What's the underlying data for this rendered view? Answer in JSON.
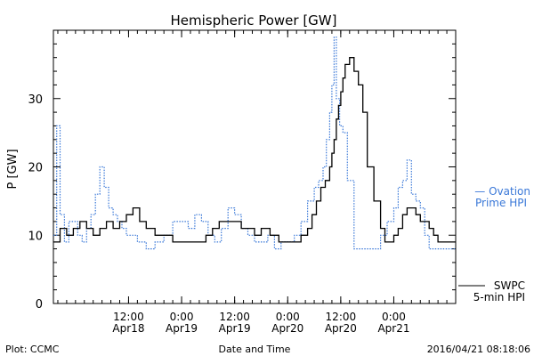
{
  "chart_data": {
    "type": "line",
    "title": "Hemispheric Power [GW]",
    "xlabel": "Date and Time",
    "ylabel": "P [GW]",
    "ylim": [
      0,
      40
    ],
    "xlim": [
      "2016-04-17 19:00",
      "2016-04-21 14:00"
    ],
    "yticks": [
      0,
      10,
      20,
      30
    ],
    "xticks": [
      {
        "time": "2016-04-18 12:00",
        "line1": "12:00",
        "line2": "Apr18"
      },
      {
        "time": "2016-04-19 00:00",
        "line1": "0:00",
        "line2": "Apr19"
      },
      {
        "time": "2016-04-19 12:00",
        "line1": "12:00",
        "line2": "Apr19"
      },
      {
        "time": "2016-04-20 00:00",
        "line1": "0:00",
        "line2": "Apr20"
      },
      {
        "time": "2016-04-20 12:00",
        "line1": "12:00",
        "line2": "Apr20"
      },
      {
        "time": "2016-04-21 00:00",
        "line1": "0:00",
        "line2": "Apr21"
      }
    ],
    "series": [
      {
        "name": "SWPC 5-min HPI",
        "color": "#000000",
        "style": "solid",
        "x": [
          "2016-04-17 19:00",
          "2016-04-17 20:30",
          "2016-04-17 22:00",
          "2016-04-17 23:30",
          "2016-04-18 01:00",
          "2016-04-18 02:30",
          "2016-04-18 04:00",
          "2016-04-18 05:30",
          "2016-04-18 07:00",
          "2016-04-18 08:30",
          "2016-04-18 10:00",
          "2016-04-18 11:30",
          "2016-04-18 13:00",
          "2016-04-18 14:30",
          "2016-04-18 16:00",
          "2016-04-18 18:00",
          "2016-04-18 20:00",
          "2016-04-18 22:00",
          "2016-04-19 00:00",
          "2016-04-19 02:00",
          "2016-04-19 04:00",
          "2016-04-19 05:30",
          "2016-04-19 07:00",
          "2016-04-19 08:30",
          "2016-04-19 10:00",
          "2016-04-19 12:00",
          "2016-04-19 13:30",
          "2016-04-19 15:00",
          "2016-04-19 16:30",
          "2016-04-19 18:00",
          "2016-04-19 20:00",
          "2016-04-19 22:00",
          "2016-04-20 00:00",
          "2016-04-20 01:30",
          "2016-04-20 03:00",
          "2016-04-20 04:30",
          "2016-04-20 05:30",
          "2016-04-20 06:30",
          "2016-04-20 07:30",
          "2016-04-20 08:30",
          "2016-04-20 09:30",
          "2016-04-20 10:00",
          "2016-04-20 10:30",
          "2016-04-20 11:00",
          "2016-04-20 11:30",
          "2016-04-20 12:00",
          "2016-04-20 12:30",
          "2016-04-20 13:00",
          "2016-04-20 14:00",
          "2016-04-20 15:00",
          "2016-04-20 16:00",
          "2016-04-20 17:00",
          "2016-04-20 18:00",
          "2016-04-20 19:30",
          "2016-04-20 21:00",
          "2016-04-20 22:00",
          "2016-04-20 23:00",
          "2016-04-21 00:00",
          "2016-04-21 01:00",
          "2016-04-21 02:00",
          "2016-04-21 03:00",
          "2016-04-21 04:00",
          "2016-04-21 05:00",
          "2016-04-21 06:00",
          "2016-04-21 07:00",
          "2016-04-21 08:00",
          "2016-04-21 09:00",
          "2016-04-21 10:00",
          "2016-04-21 11:00",
          "2016-04-21 12:00",
          "2016-04-21 13:00"
        ],
        "y": [
          9,
          11,
          10,
          11,
          12,
          11,
          10,
          11,
          12,
          11,
          12,
          13,
          14,
          12,
          11,
          10,
          10,
          9,
          9,
          9,
          9,
          10,
          11,
          12,
          12,
          12,
          11,
          11,
          10,
          11,
          10,
          9,
          9,
          9,
          10,
          11,
          13,
          15,
          17,
          18,
          20,
          22,
          24,
          27,
          29,
          31,
          33,
          35,
          36,
          34,
          32,
          28,
          20,
          15,
          11,
          9,
          9,
          10,
          11,
          13,
          14,
          14,
          13,
          12,
          12,
          11,
          10,
          9,
          9,
          9,
          9
        ]
      },
      {
        "name": "Ovation Prime HPI",
        "color": "#3a78d8",
        "style": "dotted",
        "x": [
          "2016-04-17 19:00",
          "2016-04-17 19:45",
          "2016-04-17 20:30",
          "2016-04-17 21:30",
          "2016-04-17 22:30",
          "2016-04-17 23:30",
          "2016-04-18 00:30",
          "2016-04-18 01:30",
          "2016-04-18 02:30",
          "2016-04-18 03:30",
          "2016-04-18 04:30",
          "2016-04-18 05:30",
          "2016-04-18 06:30",
          "2016-04-18 07:30",
          "2016-04-18 08:30",
          "2016-04-18 09:30",
          "2016-04-18 10:30",
          "2016-04-18 11:30",
          "2016-04-18 12:30",
          "2016-04-18 14:00",
          "2016-04-18 16:00",
          "2016-04-18 18:00",
          "2016-04-18 20:00",
          "2016-04-18 22:00",
          "2016-04-19 00:00",
          "2016-04-19 01:30",
          "2016-04-19 03:00",
          "2016-04-19 04:30",
          "2016-04-19 06:00",
          "2016-04-19 07:30",
          "2016-04-19 09:00",
          "2016-04-19 10:30",
          "2016-04-19 12:00",
          "2016-04-19 13:30",
          "2016-04-19 15:00",
          "2016-04-19 16:30",
          "2016-04-19 18:00",
          "2016-04-19 19:30",
          "2016-04-19 21:00",
          "2016-04-19 22:30",
          "2016-04-20 00:00",
          "2016-04-20 01:30",
          "2016-04-20 03:00",
          "2016-04-20 04:30",
          "2016-04-20 06:00",
          "2016-04-20 07:00",
          "2016-04-20 08:00",
          "2016-04-20 08:45",
          "2016-04-20 09:30",
          "2016-04-20 10:00",
          "2016-04-20 10:30",
          "2016-04-20 11:00",
          "2016-04-20 11:45",
          "2016-04-20 12:30",
          "2016-04-20 13:30",
          "2016-04-20 15:00",
          "2016-04-20 16:30",
          "2016-04-20 18:00",
          "2016-04-20 19:30",
          "2016-04-20 21:00",
          "2016-04-20 22:30",
          "2016-04-21 00:00",
          "2016-04-21 01:00",
          "2016-04-21 02:00",
          "2016-04-21 03:00",
          "2016-04-21 04:00",
          "2016-04-21 05:00",
          "2016-04-21 06:00",
          "2016-04-21 07:00",
          "2016-04-21 08:00",
          "2016-04-21 09:00",
          "2016-04-21 10:00",
          "2016-04-21 11:00",
          "2016-04-21 12:00",
          "2016-04-21 13:00"
        ],
        "y": [
          10,
          26,
          13,
          9,
          12,
          12,
          10,
          9,
          11,
          13,
          16,
          20,
          17,
          14,
          13,
          12,
          11,
          10,
          10,
          9,
          8,
          9,
          10,
          12,
          12,
          11,
          13,
          12,
          10,
          9,
          11,
          14,
          13,
          11,
          10,
          9,
          9,
          10,
          8,
          9,
          9,
          10,
          12,
          15,
          17,
          18,
          20,
          24,
          28,
          32,
          39,
          30,
          26,
          25,
          18,
          8,
          8,
          8,
          8,
          10,
          12,
          14,
          17,
          18,
          21,
          16,
          15,
          14,
          10,
          8,
          8,
          8,
          8,
          8,
          8
        ]
      }
    ],
    "grid": false,
    "legend": [
      {
        "line1": "SWPC",
        "line2": "5-min HPI",
        "color": "#000000",
        "placement": "bottom-right"
      },
      {
        "line1": "— Ovation",
        "line2": "Prime HPI",
        "color": "#3a78d8",
        "placement": "right-middle"
      }
    ]
  },
  "footer": {
    "left": "Plot: CCMC",
    "center": "Date and Time",
    "right": "2016/04/21 08:18:06"
  }
}
